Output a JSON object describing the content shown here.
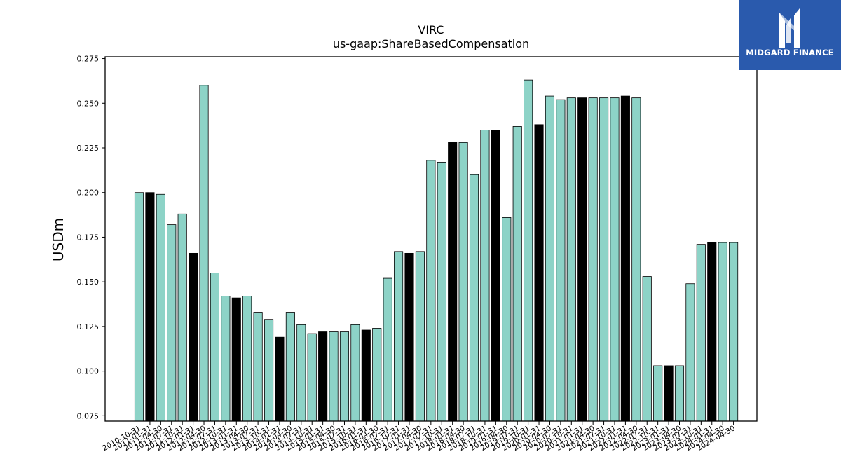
{
  "logo": {
    "text": "MIDGARD FINANCE",
    "background": "#2a5aad"
  },
  "chart_data": {
    "type": "bar",
    "title": "VIRC",
    "subtitle": "us-gaap:ShareBasedCompensation",
    "ylabel": "USDm",
    "xlabel": "",
    "ylim": [
      0.072,
      0.276
    ],
    "yticks": [
      "0.075",
      "0.100",
      "0.125",
      "0.150",
      "0.175",
      "0.200",
      "0.225",
      "0.250",
      "0.275"
    ],
    "colors": {
      "default": "#8dd3c7",
      "highlight": "#000000",
      "edge": "#000000"
    },
    "categories": [
      "2010-10-31",
      "2011-01-31",
      "2011-04-30",
      "2011-07-31",
      "2011-10-31",
      "2012-01-31",
      "2012-04-30",
      "2012-07-31",
      "2012-10-31",
      "2013-01-31",
      "2013-04-30",
      "2013-07-31",
      "2013-10-31",
      "2014-01-31",
      "2014-04-30",
      "2014-07-31",
      "2014-10-31",
      "2015-01-31",
      "2015-04-30",
      "2015-07-31",
      "2015-10-31",
      "2016-01-31",
      "2016-04-30",
      "2016-07-31",
      "2016-10-31",
      "2017-01-31",
      "2017-04-30",
      "2017-07-31",
      "2017-10-31",
      "2018-01-31",
      "2018-04-30",
      "2018-07-31",
      "2018-10-31",
      "2019-01-31",
      "2019-04-30",
      "2019-07-31",
      "2019-10-31",
      "2020-01-31",
      "2020-04-30",
      "2020-07-31",
      "2020-10-31",
      "2021-01-31",
      "2021-04-30",
      "2021-07-31",
      "2021-10-31",
      "2022-01-31",
      "2022-04-30",
      "2022-07-31",
      "2022-10-31",
      "2023-01-31",
      "2023-04-30",
      "2023-07-31",
      "2023-10-31",
      "2024-01-31",
      "2024-04-30",
      "2024-04-30"
    ],
    "values": [
      0.2,
      0.2,
      0.199,
      0.182,
      0.188,
      0.166,
      0.26,
      0.155,
      0.142,
      0.141,
      0.142,
      0.133,
      0.129,
      0.119,
      0.133,
      0.126,
      0.121,
      0.122,
      0.122,
      0.122,
      0.126,
      0.123,
      0.124,
      0.152,
      0.167,
      0.166,
      0.167,
      0.218,
      0.217,
      0.228,
      0.228,
      0.21,
      0.235,
      0.235,
      0.186,
      0.237,
      0.263,
      0.238,
      0.254,
      0.252,
      0.253,
      0.253,
      0.253,
      0.253,
      0.253,
      0.254,
      0.253,
      0.153,
      0.103,
      0.103,
      0.103,
      0.149,
      0.171,
      0.172,
      0.172,
      0.172
    ],
    "highlighted": [
      false,
      true,
      false,
      false,
      false,
      true,
      false,
      false,
      false,
      true,
      false,
      false,
      false,
      true,
      false,
      false,
      false,
      true,
      false,
      false,
      false,
      true,
      false,
      false,
      false,
      true,
      false,
      false,
      false,
      true,
      false,
      false,
      false,
      true,
      false,
      false,
      false,
      true,
      false,
      false,
      false,
      true,
      false,
      false,
      false,
      true,
      false,
      false,
      false,
      true,
      false,
      false,
      false,
      true,
      false,
      false
    ]
  }
}
